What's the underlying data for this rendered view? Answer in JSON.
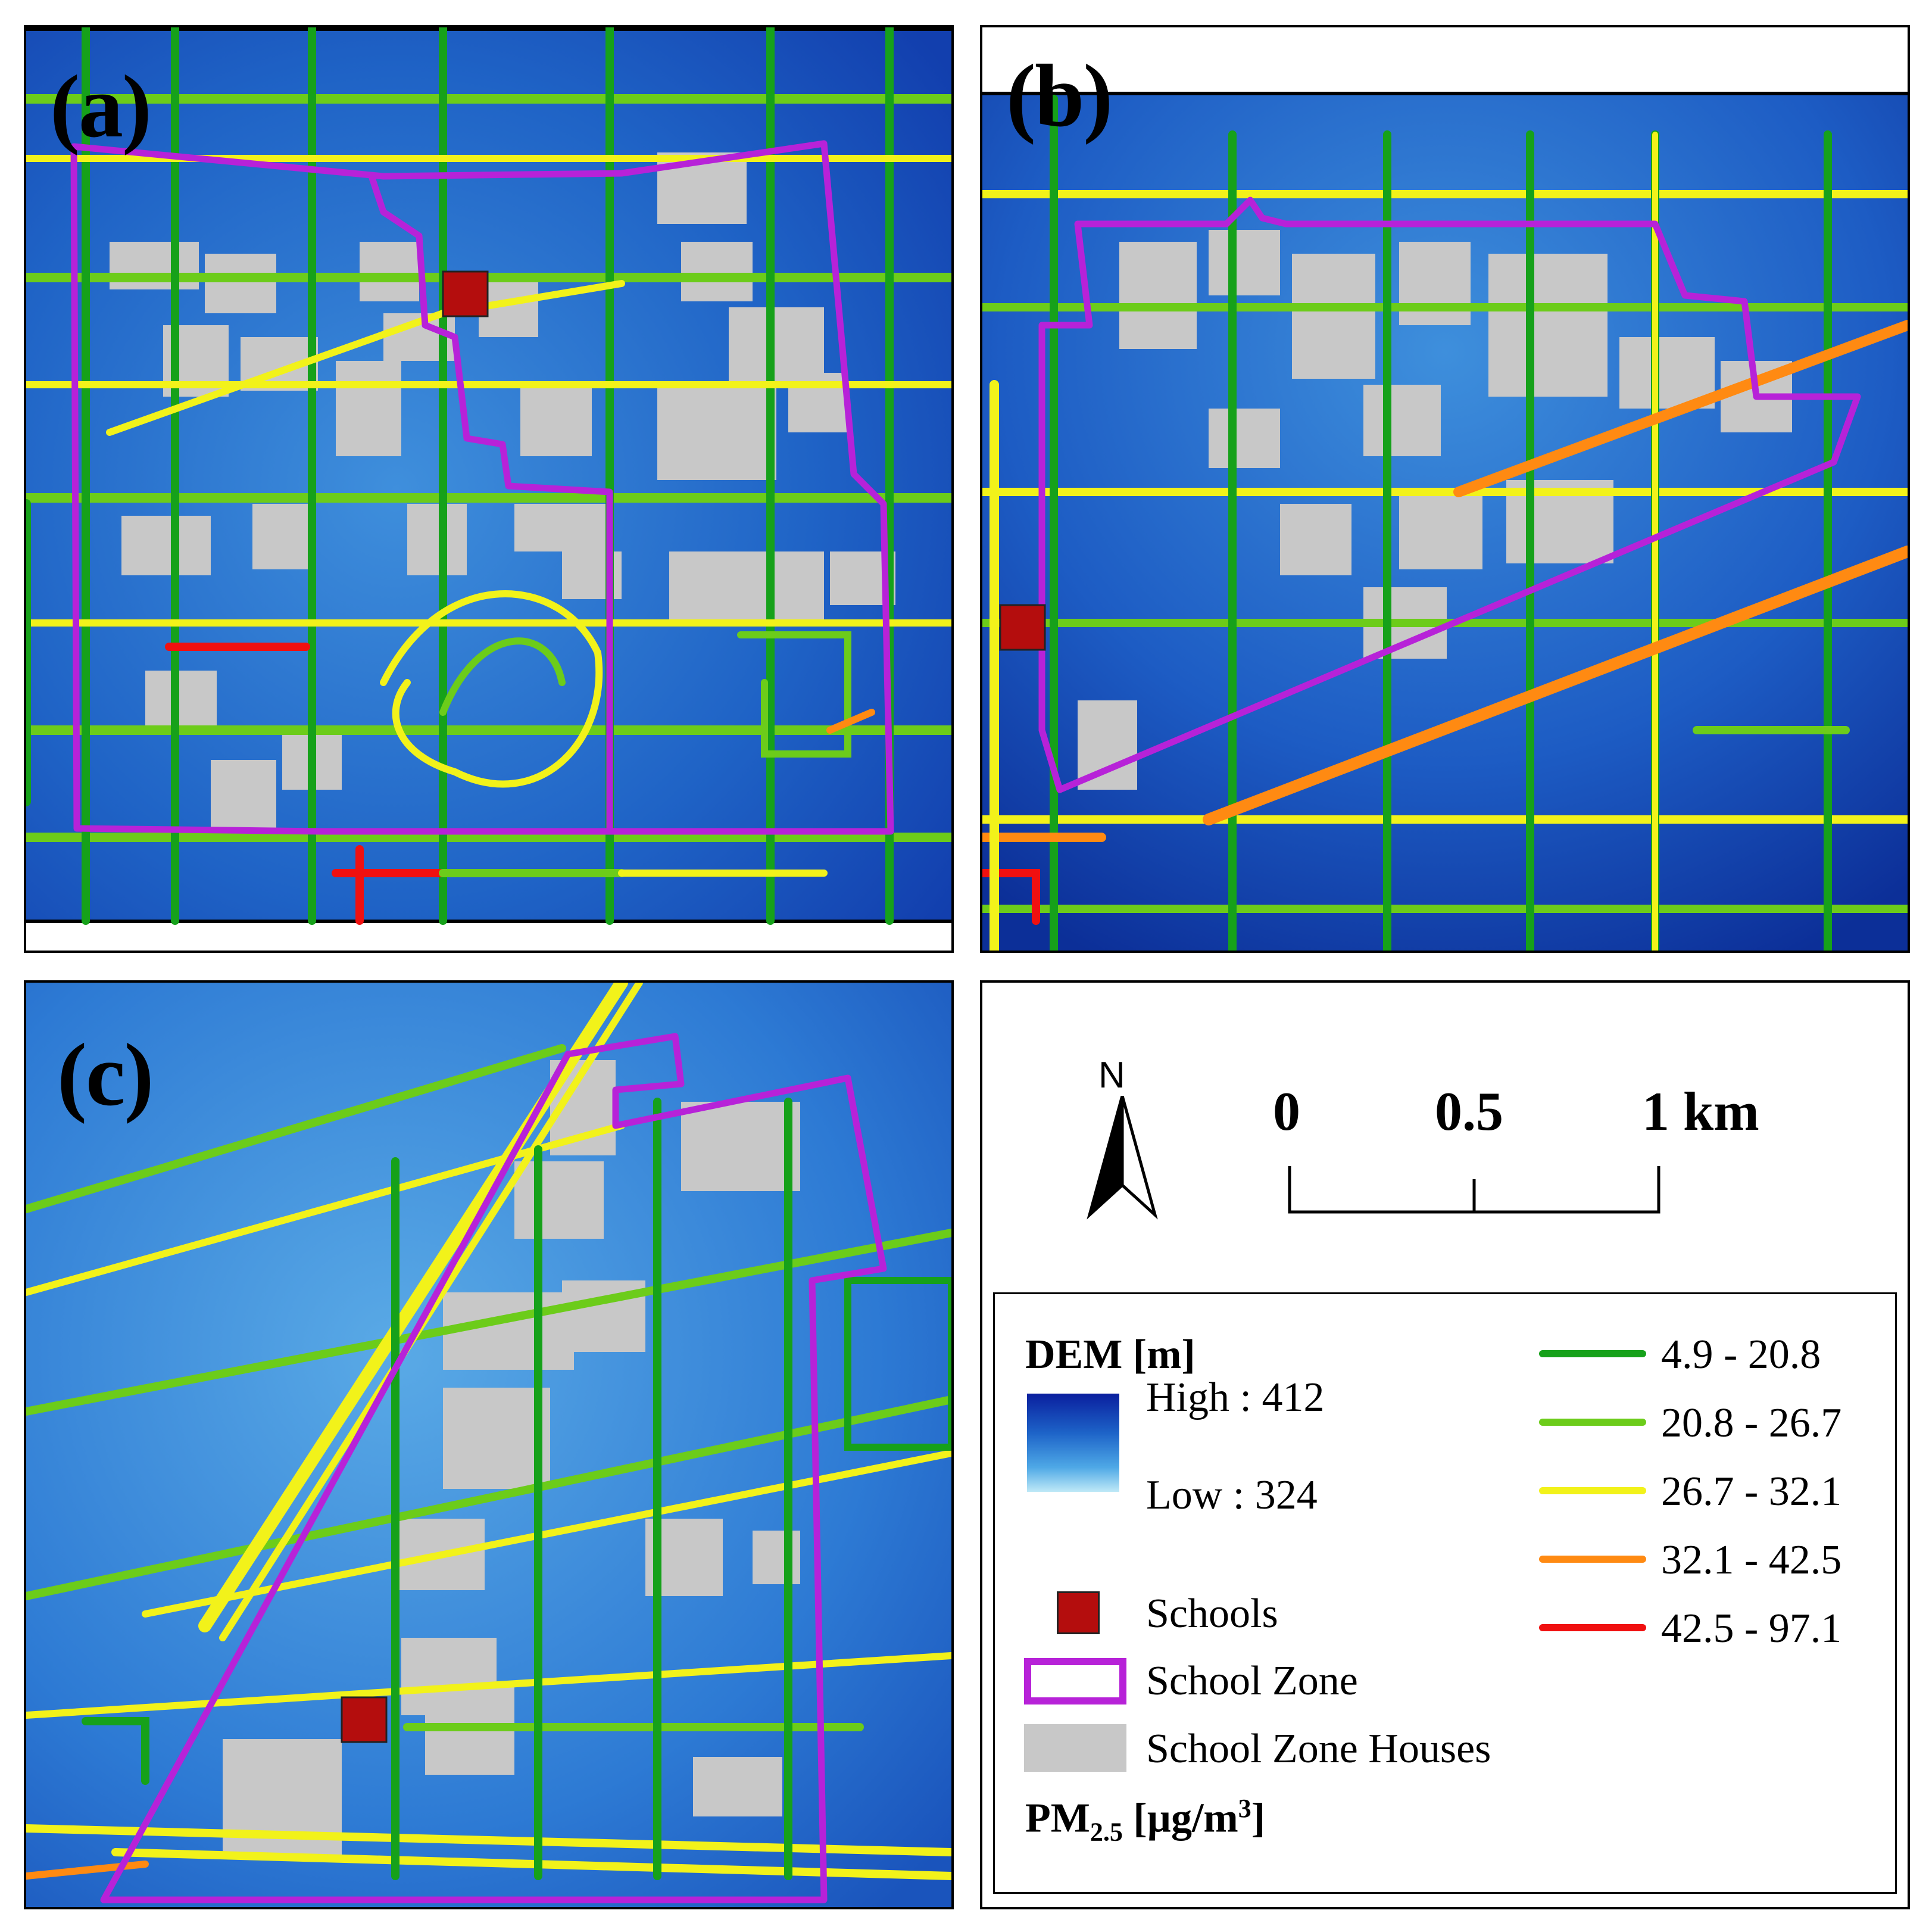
{
  "panels": [
    {
      "id": "a",
      "label": "(a)"
    },
    {
      "id": "b",
      "label": "(b)"
    },
    {
      "id": "c",
      "label": "(c)"
    }
  ],
  "north_arrow": {
    "letter": "N",
    "icon": "north-arrow-icon"
  },
  "scale_bar": {
    "ticks": [
      "0",
      "0.5",
      "1 km"
    ]
  },
  "legend": {
    "dem_title": "DEM [m]",
    "dem_high": "High : 412",
    "dem_low": "Low : 324",
    "schools": "Schools",
    "school_zone": "School Zone",
    "school_zone_houses": "School Zone Houses",
    "pm_title_main": "PM",
    "pm_title_sub": "2.5",
    "pm_title_unit": " [µg/m",
    "pm_title_sup": "3",
    "pm_title_end": "]",
    "pm_classes": [
      {
        "range": "4.9 - 20.8",
        "color": "#16a11a"
      },
      {
        "range": "20.8 - 26.7",
        "color": "#6ccc1a"
      },
      {
        "range": "26.7 - 32.1",
        "color": "#f2f21a"
      },
      {
        "range": "32.1 - 42.5",
        "color": "#ff8a12"
      },
      {
        "range": "42.5 - 97.1",
        "color": "#f01010"
      }
    ]
  },
  "colors": {
    "school_zone": "#b722d8",
    "school": "#b40d0d",
    "houses": "#c8c8c8",
    "dem_high": "#0a1f9e",
    "dem_low": "#bfe9f7"
  }
}
